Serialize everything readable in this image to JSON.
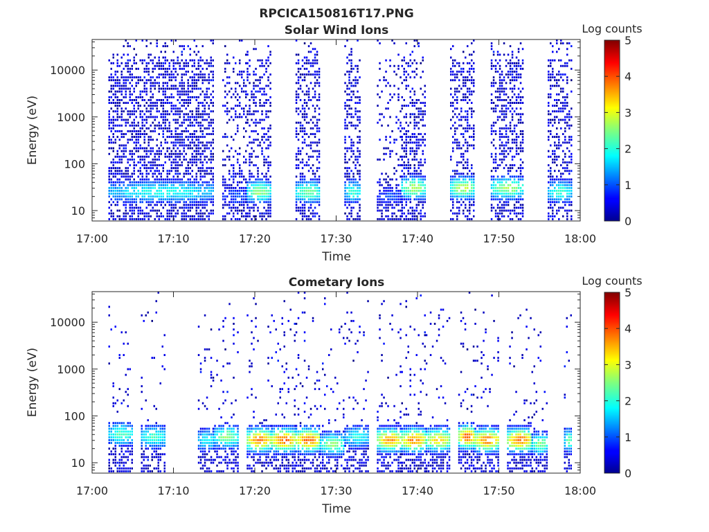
{
  "figure": {
    "title": "RPCICA150816T17.PNG"
  },
  "chart_data": [
    {
      "type": "heatmap",
      "title": "Solar Wind Ions",
      "xlabel": "Time",
      "ylabel": "Energy (eV)",
      "x_ticks": [
        "17:00",
        "17:10",
        "17:20",
        "17:30",
        "17:40",
        "17:50",
        "18:00"
      ],
      "xlim": [
        "17:00",
        "18:00"
      ],
      "y_ticks": [
        10,
        100,
        1000,
        10000
      ],
      "y_tick_labels": [
        "10",
        "100",
        "1000",
        "10000"
      ],
      "ylim": [
        6,
        45000
      ],
      "y_scale": "log",
      "colorbar": {
        "label": "Log counts",
        "range": [
          0,
          5
        ],
        "ticks": [
          "0",
          "1",
          "2",
          "3",
          "4",
          "5"
        ],
        "colormap": "jet"
      },
      "bursts": [
        {
          "start": "17:02",
          "end": "17:15",
          "peak_energy_eV": 25,
          "peak_log_counts": 2.0,
          "high_energy_density": 0.55
        },
        {
          "start": "17:16",
          "end": "17:19",
          "peak_energy_eV": 20,
          "peak_log_counts": 1.0,
          "high_energy_density": 0.25
        },
        {
          "start": "17:19",
          "end": "17:22",
          "peak_energy_eV": 25,
          "peak_log_counts": 2.6,
          "high_energy_density": 0.35
        },
        {
          "start": "17:25",
          "end": "17:28",
          "peak_energy_eV": 25,
          "peak_log_counts": 2.5,
          "high_energy_density": 0.45
        },
        {
          "start": "17:31",
          "end": "17:33",
          "peak_energy_eV": 25,
          "peak_log_counts": 2.2,
          "high_energy_density": 0.4
        },
        {
          "start": "17:35",
          "end": "17:38",
          "peak_energy_eV": 20,
          "peak_log_counts": 1.0,
          "high_energy_density": 0.2
        },
        {
          "start": "17:38",
          "end": "17:41",
          "peak_energy_eV": 30,
          "peak_log_counts": 2.8,
          "high_energy_density": 0.4
        },
        {
          "start": "17:44",
          "end": "17:47",
          "peak_energy_eV": 30,
          "peak_log_counts": 2.8,
          "high_energy_density": 0.4
        },
        {
          "start": "17:49",
          "end": "17:53",
          "peak_energy_eV": 30,
          "peak_log_counts": 2.7,
          "high_energy_density": 0.45
        },
        {
          "start": "17:56",
          "end": "17:59",
          "peak_energy_eV": 25,
          "peak_log_counts": 2.2,
          "high_energy_density": 0.45
        }
      ]
    },
    {
      "type": "heatmap",
      "title": "Cometary Ions",
      "xlabel": "Time",
      "ylabel": "Energy (eV)",
      "x_ticks": [
        "17:00",
        "17:10",
        "17:20",
        "17:30",
        "17:40",
        "17:50",
        "18:00"
      ],
      "xlim": [
        "17:00",
        "18:00"
      ],
      "y_ticks": [
        10,
        100,
        1000,
        10000
      ],
      "y_tick_labels": [
        "10",
        "100",
        "1000",
        "10000"
      ],
      "ylim": [
        6,
        45000
      ],
      "y_scale": "log",
      "colorbar": {
        "label": "Log counts",
        "range": [
          0,
          5
        ],
        "ticks": [
          "0",
          "1",
          "2",
          "3",
          "4",
          "5"
        ],
        "colormap": "jet"
      },
      "bursts": [
        {
          "start": "17:02",
          "end": "17:05",
          "peak_energy_eV": 40,
          "peak_log_counts": 2.3
        },
        {
          "start": "17:06",
          "end": "17:09",
          "peak_energy_eV": 35,
          "peak_log_counts": 2.2
        },
        {
          "start": "17:13",
          "end": "17:15",
          "peak_energy_eV": 30,
          "peak_log_counts": 2.0
        },
        {
          "start": "17:15",
          "end": "17:18",
          "peak_energy_eV": 35,
          "peak_log_counts": 2.6
        },
        {
          "start": "17:19",
          "end": "17:22",
          "peak_energy_eV": 30,
          "peak_log_counts": 3.8
        },
        {
          "start": "17:22",
          "end": "17:25",
          "peak_energy_eV": 30,
          "peak_log_counts": 3.9
        },
        {
          "start": "17:25",
          "end": "17:28",
          "peak_energy_eV": 30,
          "peak_log_counts": 3.9
        },
        {
          "start": "17:28",
          "end": "17:31",
          "peak_energy_eV": 25,
          "peak_log_counts": 2.6
        },
        {
          "start": "17:31",
          "end": "17:34",
          "peak_energy_eV": 35,
          "peak_log_counts": 2.0
        },
        {
          "start": "17:35",
          "end": "17:38",
          "peak_energy_eV": 30,
          "peak_log_counts": 3.7
        },
        {
          "start": "17:38",
          "end": "17:41",
          "peak_energy_eV": 30,
          "peak_log_counts": 3.8
        },
        {
          "start": "17:41",
          "end": "17:44",
          "peak_energy_eV": 30,
          "peak_log_counts": 3.3
        },
        {
          "start": "17:45",
          "end": "17:47",
          "peak_energy_eV": 35,
          "peak_log_counts": 4.0
        },
        {
          "start": "17:47",
          "end": "17:50",
          "peak_energy_eV": 30,
          "peak_log_counts": 3.8
        },
        {
          "start": "17:51",
          "end": "17:54",
          "peak_energy_eV": 30,
          "peak_log_counts": 3.9
        },
        {
          "start": "17:54",
          "end": "17:56",
          "peak_energy_eV": 25,
          "peak_log_counts": 2.5
        },
        {
          "start": "17:58",
          "end": "17:59",
          "peak_energy_eV": 30,
          "peak_log_counts": 2.5
        }
      ]
    }
  ]
}
